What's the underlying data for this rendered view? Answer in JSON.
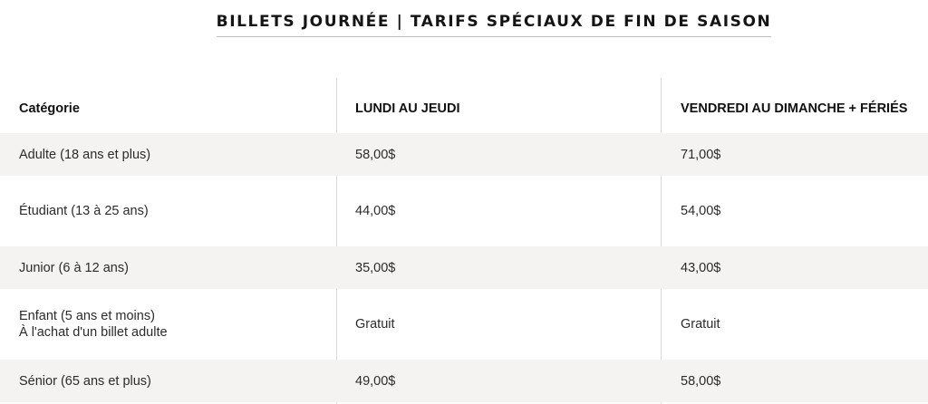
{
  "title": "BILLETS JOURNÉE | TARIFS SPÉCIAUX DE FIN DE SAISON",
  "table": {
    "headers": [
      "Catégorie",
      "LUNDI AU JEUDI",
      "VENDREDI AU DIMANCHE + FÉRIÉS"
    ],
    "rows": [
      {
        "category": "Adulte (18 ans et plus)",
        "category_note": "",
        "weekday": "58,00$",
        "weekend": "71,00$"
      },
      {
        "category": "Étudiant (13 à 25 ans)",
        "category_note": "",
        "weekday": "44,00$",
        "weekend": "54,00$"
      },
      {
        "category": "Junior (6 à 12 ans)",
        "category_note": "",
        "weekday": "35,00$",
        "weekend": "43,00$"
      },
      {
        "category": "Enfant (5 ans et moins)",
        "category_note": "À l'achat d'un billet adulte",
        "weekday": "Gratuit",
        "weekend": "Gratuit"
      },
      {
        "category": "Sénior (65 ans et plus)",
        "category_note": "",
        "weekday": "49,00$",
        "weekend": "58,00$"
      }
    ]
  },
  "colors": {
    "shaded_row": "#f4f3f1",
    "divider": "#d9d9d9",
    "text": "#2b2b2b"
  }
}
